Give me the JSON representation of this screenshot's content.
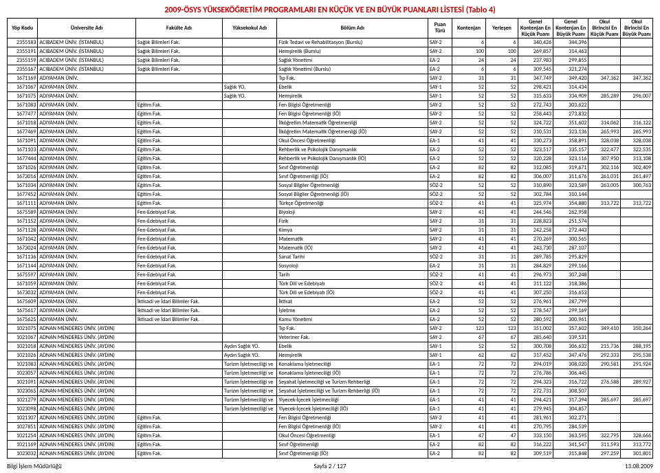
{
  "title": "2009-ÖSYS YÜKSEKÖĞRETİM PROGRAMLARI EN KÜÇÜK VE EN BÜYÜK PUANLARI LİSTESİ (Tablo 4)",
  "columns": [
    "Yöp Kodu",
    "Üniversite Adı",
    "Fakülte Adı",
    "Yüksekokul Adı",
    "Bölüm Adı",
    "Puan Türü",
    "Kontenjan",
    "Yerleşen",
    "Genel Kontenjan En Küçük Puanı",
    "Genel Kontenjan En Büyük Puanı",
    "Okul Birincisi En Küçük Puanı",
    "Okul Birincisi En Büyük Puanı"
  ],
  "col_align": [
    "num",
    "txt",
    "txt",
    "txt",
    "txt",
    "txt",
    "num",
    "num",
    "num",
    "num",
    "num",
    "num"
  ],
  "rows": [
    [
      "2355183",
      "ACIBADEM ÜNİV. (İSTANBUL)",
      "Sağlık Bilimleri Fak.",
      "",
      "Fizik Tedavi ve Rehabilitasyon (Burslu)",
      "SAY-2",
      "6",
      "6",
      "340,426",
      "344,396",
      "",
      ""
    ],
    [
      "2355191",
      "ACIBADEM ÜNİV. (İSTANBUL)",
      "Sağlık Bilimleri Fak.",
      "",
      "Hemşirelik (Burslu)",
      "SAY-2",
      "100",
      "100",
      "269,857",
      "314,463",
      "",
      ""
    ],
    [
      "2355159",
      "ACIBADEM ÜNİV. (İSTANBUL)",
      "Sağlık Bilimleri Fak.",
      "",
      "Sağlık Yönetimi",
      "EA-2",
      "24",
      "24",
      "237,983",
      "299,855",
      "",
      ""
    ],
    [
      "2355167",
      "ACIBADEM ÜNİV. (İSTANBUL)",
      "Sağlık Bilimleri Fak.",
      "",
      "Sağlık Yönetimi (Burslu)",
      "EA-2",
      "6",
      "6",
      "309,545",
      "321,274",
      "",
      ""
    ],
    [
      "1671169",
      "ADIYAMAN ÜNİV.",
      "",
      "",
      "Tıp Fak.",
      "SAY-2",
      "31",
      "31",
      "347,749",
      "349,420",
      "347,362",
      "347,362"
    ],
    [
      "1671067",
      "ADIYAMAN ÜNİV.",
      "",
      "Sağlık YO.",
      "Ebelik",
      "SAY-1",
      "52",
      "52",
      "298,421",
      "314,434",
      "",
      ""
    ],
    [
      "1671075",
      "ADIYAMAN ÜNİV.",
      "",
      "Sağlık YO.",
      "Hemşirelik",
      "SAY-1",
      "52",
      "52",
      "315,633",
      "334,909",
      "285,289",
      "296,007"
    ],
    [
      "1671083",
      "ADIYAMAN ÜNİV.",
      "Eğitim Fak.",
      "",
      "Fen Bilgisi Öğretmenliği",
      "SAY-2",
      "52",
      "52",
      "272,743",
      "303,622",
      "",
      ""
    ],
    [
      "1677477",
      "ADIYAMAN ÜNİV.",
      "Eğitim Fak.",
      "",
      "Fen Bilgisi Öğretmenliği (İÖ)",
      "SAY-2",
      "52",
      "52",
      "258,443",
      "273,832",
      "",
      ""
    ],
    [
      "1671018",
      "ADIYAMAN ÜNİV.",
      "Eğitim Fak.",
      "",
      "İlköğretim Matematik Öğretmenliği",
      "SAY-2",
      "52",
      "52",
      "324,722",
      "351,602",
      "314,062",
      "316,122"
    ],
    [
      "1677469",
      "ADIYAMAN ÜNİV.",
      "Eğitim Fak.",
      "",
      "İlköğretim Matematik Öğretmenliği (İÖ)",
      "SAY-2",
      "52",
      "52",
      "310,531",
      "323,136",
      "265,993",
      "265,993"
    ],
    [
      "1671091",
      "ADIYAMAN ÜNİV.",
      "Eğitim Fak.",
      "",
      "Okul Öncesi Öğretmenliği",
      "EA-1",
      "41",
      "41",
      "330,273",
      "358,891",
      "328,038",
      "328,038"
    ],
    [
      "1671103",
      "ADIYAMAN ÜNİV.",
      "Eğitim Fak.",
      "",
      "Rehberlik ve Psikolojik Danışmanlık",
      "EA-2",
      "52",
      "52",
      "323,517",
      "335,157",
      "322,477",
      "322,535"
    ],
    [
      "1677444",
      "ADIYAMAN ÜNİV.",
      "Eğitim Fak.",
      "",
      "Rehberlik ve Psikolojik Danışmanlık (İÖ)",
      "EA-2",
      "52",
      "52",
      "320,228",
      "323,116",
      "307,950",
      "313,108"
    ],
    [
      "1671026",
      "ADIYAMAN ÜNİV.",
      "Eğitim Fak.",
      "",
      "Sınıf Öğretmenliği",
      "EA-2",
      "82",
      "82",
      "312,085",
      "319,671",
      "302,116",
      "302,409"
    ],
    [
      "1673016",
      "ADIYAMAN ÜNİV.",
      "Eğitim Fak.",
      "",
      "Sınıf Öğretmenliği (İÖ)",
      "EA-2",
      "82",
      "82",
      "306,007",
      "311,676",
      "261,031",
      "261,497"
    ],
    [
      "1671034",
      "ADIYAMAN ÜNİV.",
      "Eğitim Fak.",
      "",
      "Sosyal Bilgiler Öğretmenliği",
      "SÖZ-2",
      "52",
      "52",
      "310,890",
      "323,589",
      "263,005",
      "300,763"
    ],
    [
      "1677452",
      "ADIYAMAN ÜNİV.",
      "Eğitim Fak.",
      "",
      "Sosyal Bilgiler Öğretmenliği (İÖ)",
      "SÖZ-2",
      "52",
      "52",
      "302,784",
      "310,144",
      "",
      ""
    ],
    [
      "1671111",
      "ADIYAMAN ÜNİV.",
      "Eğitim Fak.",
      "",
      "Türkçe Öğretmenliği",
      "SÖZ-2",
      "41",
      "41",
      "325,974",
      "354,880",
      "313,722",
      "313,722"
    ],
    [
      "1675589",
      "ADIYAMAN ÜNİV.",
      "Fen-Edebiyat Fak.",
      "",
      "Biyoloji",
      "SAY-2",
      "41",
      "41",
      "244,546",
      "262,958",
      "",
      ""
    ],
    [
      "1671152",
      "ADIYAMAN ÜNİV.",
      "Fen-Edebiyat Fak.",
      "",
      "Fizik",
      "SAY-2",
      "31",
      "31",
      "228,823",
      "251,574",
      "",
      ""
    ],
    [
      "1671128",
      "ADIYAMAN ÜNİV.",
      "Fen-Edebiyat Fak.",
      "",
      "Kimya",
      "SAY-2",
      "31",
      "31",
      "242,258",
      "272,443",
      "",
      ""
    ],
    [
      "1671042",
      "ADIYAMAN ÜNİV.",
      "Fen-Edebiyat Fak.",
      "",
      "Matematik",
      "SAY-2",
      "41",
      "41",
      "270,269",
      "300,565",
      "",
      ""
    ],
    [
      "1673024",
      "ADIYAMAN ÜNİV.",
      "Fen-Edebiyat Fak.",
      "",
      "Matematik (İÖ)",
      "SAY-2",
      "41",
      "41",
      "243,730",
      "287,107",
      "",
      ""
    ],
    [
      "1671136",
      "ADIYAMAN ÜNİV.",
      "Fen-Edebiyat Fak.",
      "",
      "Sanat Tarihi",
      "SÖZ-2",
      "31",
      "31",
      "289,785",
      "295,829",
      "",
      ""
    ],
    [
      "1671144",
      "ADIYAMAN ÜNİV.",
      "Fen-Edebiyat Fak.",
      "",
      "Sosyoloji",
      "EA-2",
      "31",
      "31",
      "284,829",
      "299,166",
      "",
      ""
    ],
    [
      "1675597",
      "ADIYAMAN ÜNİV.",
      "Fen-Edebiyat Fak.",
      "",
      "Tarih",
      "SÖZ-2",
      "41",
      "41",
      "296,973",
      "307,248",
      "",
      ""
    ],
    [
      "1671059",
      "ADIYAMAN ÜNİV.",
      "Fen-Edebiyat Fak.",
      "",
      "Türk Dili ve Edebiyatı",
      "SÖZ-2",
      "41",
      "41",
      "311,122",
      "318,386",
      "",
      ""
    ],
    [
      "1673032",
      "ADIYAMAN ÜNİV.",
      "Fen-Edebiyat Fak.",
      "",
      "Türk Dili ve Edebiyatı (İÖ)",
      "SÖZ-2",
      "41",
      "41",
      "307,250",
      "316,653",
      "",
      ""
    ],
    [
      "1675609",
      "ADIYAMAN ÜNİV.",
      "İktisadi ve İdari Bilimler Fak.",
      "",
      "İktisat",
      "EA-2",
      "52",
      "52",
      "276,961",
      "287,799",
      "",
      ""
    ],
    [
      "1675617",
      "ADIYAMAN ÜNİV.",
      "İktisadi ve İdari Bilimler Fak.",
      "",
      "İşletme",
      "EA-2",
      "52",
      "52",
      "278,547",
      "299,169",
      "",
      ""
    ],
    [
      "1675625",
      "ADIYAMAN ÜNİV.",
      "İktisadi ve İdari Bilimler Fak.",
      "",
      "Kamu Yönetimi",
      "EA-2",
      "52",
      "52",
      "280,592",
      "300,961",
      "",
      ""
    ],
    [
      "1021075",
      "ADNAN MENDERES ÜNİV. (AYDIN)",
      "",
      "",
      "Tıp Fak.",
      "SAY-2",
      "123",
      "123",
      "351,002",
      "357,602",
      "349,410",
      "350,264"
    ],
    [
      "1021067",
      "ADNAN MENDERES ÜNİV. (AYDIN)",
      "",
      "",
      "Veteriner Fak.",
      "SAY-2",
      "67",
      "67",
      "285,640",
      "339,531",
      "",
      ""
    ],
    [
      "1021018",
      "ADNAN MENDERES ÜNİV. (AYDIN)",
      "",
      "Aydın Sağlık YO.",
      "Ebelik",
      "SAY-1",
      "52",
      "52",
      "300,708",
      "306,632",
      "215,736",
      "288,195"
    ],
    [
      "1021026",
      "ADNAN MENDERES ÜNİV. (AYDIN)",
      "",
      "Aydın Sağlık YO.",
      "Hemşirelik",
      "SAY-1",
      "62",
      "62",
      "317,452",
      "347,476",
      "292,333",
      "295,538"
    ],
    [
      "1021083",
      "ADNAN MENDERES ÜNİV. (AYDIN)",
      "",
      "Turizm İşletmeciliği ve",
      "Konaklama İşletmeciliği",
      "EA-1",
      "72",
      "72",
      "294,019",
      "308,020",
      "290,581",
      "291,924"
    ],
    [
      "1023057",
      "ADNAN MENDERES ÜNİV. (AYDIN)",
      "",
      "Turizm İşletmeciliği ve",
      "Konaklama İşletmeciliği (İÖ)",
      "EA-1",
      "72",
      "72",
      "276,786",
      "306,445",
      "",
      ""
    ],
    [
      "1021091",
      "ADNAN MENDERES ÜNİV. (AYDIN)",
      "",
      "Turizm İşletmeciliği ve",
      "Seyahat İşletmeciliği ve Turizm Rehberliği",
      "EA-1",
      "72",
      "72",
      "294,323",
      "316,722",
      "276,588",
      "289,927"
    ],
    [
      "1023065",
      "ADNAN MENDERES ÜNİV. (AYDIN)",
      "",
      "Turizm İşletmeciliği ve",
      "Seyahat İşletmeciliği ve Turizm Rehberliği (İÖ)",
      "EA-1",
      "72",
      "72",
      "272,731",
      "308,507",
      "",
      ""
    ],
    [
      "1021279",
      "ADNAN MENDERES ÜNİV. (AYDIN)",
      "",
      "Turizm İşletmeciliği ve",
      "Yiyecek-İçecek İşletmeciliği",
      "EA-1",
      "41",
      "41",
      "294,421",
      "317,394",
      "285,697",
      "285,697"
    ],
    [
      "1023098",
      "ADNAN MENDERES ÜNİV. (AYDIN)",
      "",
      "Turizm İşletmeciliği ve",
      "Yiyecek-İçecek İşletmeciliği (İÖ)",
      "EA-1",
      "41",
      "41",
      "279,945",
      "304,857",
      "",
      ""
    ],
    [
      "1021307",
      "ADNAN MENDERES ÜNİV. (AYDIN)",
      "Eğitim Fak.",
      "",
      "Fen Bilgisi Öğretmenliği",
      "SAY-2",
      "41",
      "41",
      "281,961",
      "302,271",
      "",
      ""
    ],
    [
      "1027851",
      "ADNAN MENDERES ÜNİV. (AYDIN)",
      "Eğitim Fak.",
      "",
      "Fen Bilgisi Öğretmenliği (İÖ)",
      "SAY-2",
      "41",
      "41",
      "270,795",
      "284,539",
      "",
      ""
    ],
    [
      "1021254",
      "ADNAN MENDERES ÜNİV. (AYDIN)",
      "Eğitim Fak.",
      "",
      "Okul Öncesi Öğretmenliği",
      "EA-1",
      "47",
      "47",
      "333,150",
      "363,595",
      "322,795",
      "328,666"
    ],
    [
      "1021169",
      "ADNAN MENDERES ÜNİV. (AYDIN)",
      "Eğitim Fak.",
      "",
      "Sınıf Öğretmenliği",
      "EA-2",
      "82",
      "82",
      "316,222",
      "341,547",
      "311,593",
      "313,772"
    ],
    [
      "1023032",
      "ADNAN MENDERES ÜNİV. (AYDIN)",
      "Eğitim Fak.",
      "",
      "Sınıf Öğretmenliği (İÖ)",
      "EA-2",
      "82",
      "82",
      "309,519",
      "315,848",
      "297,259",
      "301,801"
    ]
  ],
  "footer": {
    "left": "Bilgi İşlem Müdürlüğü",
    "center": "Sayfa 2 / 127",
    "right": "13.08.2009"
  }
}
